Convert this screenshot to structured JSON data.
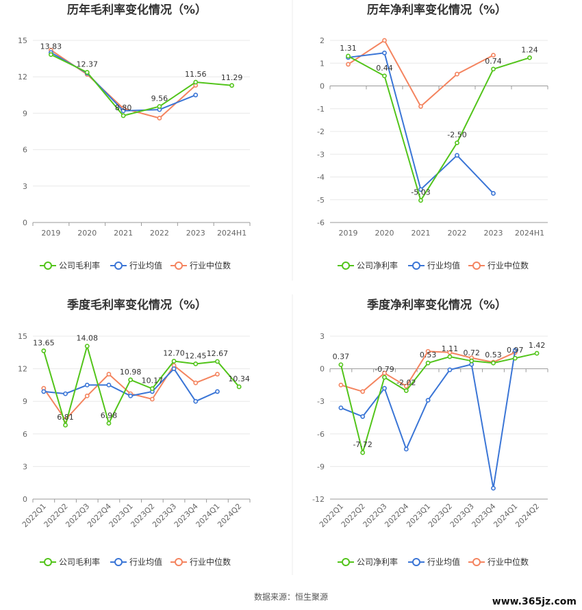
{
  "chart_data": [
    {
      "type": "line",
      "title": "历年毛利率变化情况（%）",
      "categories": [
        "2019",
        "2020",
        "2021",
        "2022",
        "2023",
        "2024H1"
      ],
      "ylim": [
        0,
        15
      ],
      "yticks": [
        0,
        3,
        6,
        9,
        12,
        15
      ],
      "series": [
        {
          "name": "公司毛利率",
          "color": "#52c41a",
          "values": [
            13.83,
            12.37,
            8.8,
            9.56,
            11.56,
            11.29
          ],
          "labels": true
        },
        {
          "name": "行业均值",
          "color": "#3a75d6",
          "values": [
            14.0,
            12.3,
            9.2,
            9.3,
            10.5,
            null
          ]
        },
        {
          "name": "行业中位数",
          "color": "#f4845f",
          "values": [
            14.2,
            12.2,
            9.4,
            8.6,
            11.3,
            null
          ]
        }
      ]
    },
    {
      "type": "line",
      "title": "历年净利率变化情况（%）",
      "categories": [
        "2019",
        "2020",
        "2021",
        "2022",
        "2023",
        "2024H1"
      ],
      "ylim": [
        -6,
        2
      ],
      "yticks": [
        -6,
        -5,
        -4,
        -3,
        -2,
        -1,
        0,
        1,
        2
      ],
      "series": [
        {
          "name": "公司净利率",
          "color": "#52c41a",
          "values": [
            1.31,
            0.44,
            -5.03,
            -2.5,
            0.74,
            1.24
          ],
          "labels": true
        },
        {
          "name": "行业均值",
          "color": "#3a75d6",
          "values": [
            1.25,
            1.45,
            -4.55,
            -3.05,
            -4.72,
            null
          ]
        },
        {
          "name": "行业中位数",
          "color": "#f4845f",
          "values": [
            0.95,
            2.0,
            -0.9,
            0.52,
            1.35,
            null
          ]
        }
      ]
    },
    {
      "type": "line",
      "title": "季度毛利率变化情况（%）",
      "categories": [
        "2022Q1",
        "2022Q2",
        "2022Q3",
        "2022Q4",
        "2023Q1",
        "2023Q2",
        "2023Q3",
        "2023Q4",
        "2024Q1",
        "2024Q2"
      ],
      "ylim": [
        0,
        15
      ],
      "yticks": [
        0,
        3,
        6,
        9,
        12,
        15
      ],
      "series": [
        {
          "name": "公司毛利率",
          "color": "#52c41a",
          "values": [
            13.65,
            6.81,
            14.08,
            6.98,
            10.98,
            10.17,
            12.7,
            12.45,
            12.67,
            10.34
          ],
          "labels": true
        },
        {
          "name": "行业均值",
          "color": "#3a75d6",
          "values": [
            9.9,
            9.7,
            10.5,
            10.5,
            9.5,
            9.9,
            12.0,
            9.0,
            9.9,
            null
          ]
        },
        {
          "name": "行业中位数",
          "color": "#f4845f",
          "values": [
            10.2,
            7.3,
            9.5,
            11.5,
            9.7,
            9.2,
            12.3,
            10.7,
            11.5,
            null
          ]
        }
      ]
    },
    {
      "type": "line",
      "title": "季度净利率变化情况（%）",
      "categories": [
        "2022Q1",
        "2022Q2",
        "2022Q3",
        "2022Q4",
        "2023Q1",
        "2023Q2",
        "2023Q3",
        "2023Q4",
        "2024Q1",
        "2024Q2"
      ],
      "ylim": [
        -12,
        3
      ],
      "yticks": [
        -12,
        -9,
        -6,
        -3,
        0,
        3
      ],
      "series": [
        {
          "name": "公司净利率",
          "color": "#52c41a",
          "values": [
            0.37,
            -7.72,
            -0.79,
            -2.02,
            0.53,
            1.11,
            0.72,
            0.53,
            0.97,
            1.42
          ],
          "labels": true
        },
        {
          "name": "行业均值",
          "color": "#3a75d6",
          "values": [
            -3.6,
            -4.4,
            -1.8,
            -7.4,
            -2.9,
            -0.1,
            0.4,
            -11.0,
            1.7,
            null
          ]
        },
        {
          "name": "行业中位数",
          "color": "#f4845f",
          "values": [
            -1.5,
            -2.1,
            -0.4,
            -1.6,
            1.6,
            1.5,
            1.0,
            0.6,
            1.5,
            null
          ]
        }
      ]
    }
  ],
  "footer": {
    "source": "数据来源：恒生聚源",
    "watermark": "www.365jz.com"
  }
}
